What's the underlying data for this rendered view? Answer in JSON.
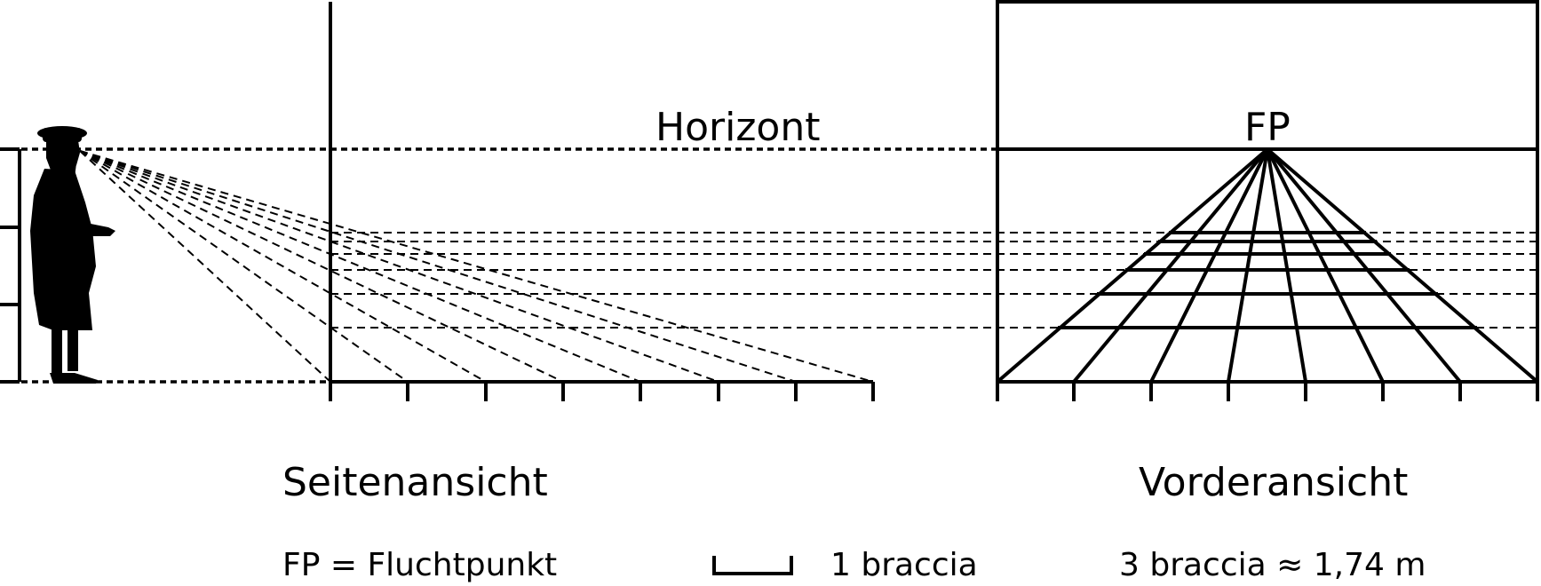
{
  "labels": {
    "horizon": "Horizont",
    "vanishing_point": "FP",
    "side_view": "Seitenansicht",
    "front_view": "Vorderansicht",
    "legend_fp": "FP = Fluchtpunkt",
    "scale_unit": "1 braccia",
    "scale_conversion": "3 braccia ≈ 1,74 m"
  },
  "diagram": {
    "side_view_ground_ticks": 8,
    "front_view_ground_ticks": 8,
    "transversal_lines": 6,
    "orthogonals_to_fp": 8
  },
  "colors": {
    "ink": "#000000",
    "background": "#ffffff"
  }
}
